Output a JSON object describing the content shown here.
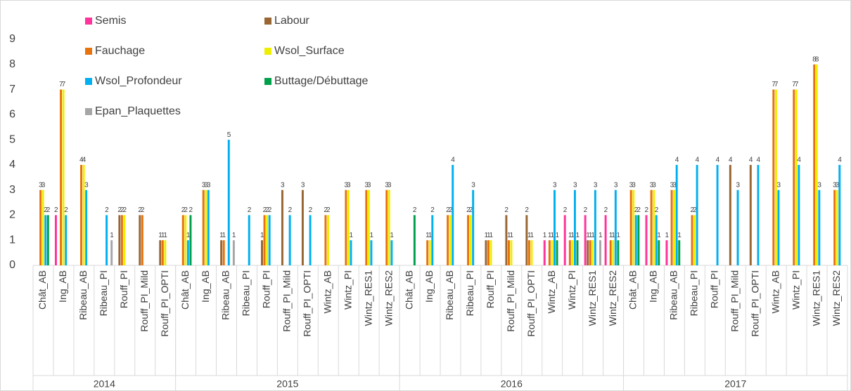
{
  "chart_data": {
    "type": "bar",
    "categories": [
      "Chât_AB",
      "Ing_AB",
      "Ribeau_AB",
      "Ribeau_PI",
      "Rouff_PI",
      "Rouff_PI_Mild",
      "Rouff_PI_OPTI",
      "Chât_AB",
      "Ing_AB",
      "Ribeau_AB",
      "Ribeau_PI",
      "Rouff_PI",
      "Rouff_PI_Mild",
      "Rouff_PI_OPTI",
      "Wintz_AB",
      "Wintz_PI",
      "Wintz_RES1",
      "Wintz_RES2",
      "Chât_AB",
      "Ing_AB",
      "Ribeau_AB",
      "Ribeau_PI",
      "Rouff_PI",
      "Rouff_PI_Mild",
      "Rouff_PI_OPTI",
      "Wintz_AB",
      "Wintz_PI",
      "Wintz_RES1",
      "Wintz_RES2",
      "Chât_AB",
      "Ing_AB",
      "Ribeau_AB",
      "Ribeau_PI",
      "Rouff_PI",
      "Rouff_PI_Mild",
      "Rouff_PI_OPTI",
      "Wintz_AB",
      "Wintz_PI",
      "Wintz_RES1",
      "Wintz_RES2"
    ],
    "category_groups": [
      "2014",
      "2014",
      "2014",
      "2014",
      "2014",
      "2014",
      "2014",
      "2015",
      "2015",
      "2015",
      "2015",
      "2015",
      "2015",
      "2015",
      "2015",
      "2015",
      "2015",
      "2015",
      "2016",
      "2016",
      "2016",
      "2016",
      "2016",
      "2016",
      "2016",
      "2016",
      "2016",
      "2016",
      "2016",
      "2017",
      "2017",
      "2017",
      "2017",
      "2017",
      "2017",
      "2017",
      "2017",
      "2017",
      "2017",
      "2017"
    ],
    "series": [
      {
        "name": "Semis",
        "color": "#ff3399",
        "values": [
          null,
          2,
          null,
          null,
          null,
          null,
          null,
          null,
          null,
          null,
          null,
          null,
          null,
          null,
          null,
          null,
          null,
          null,
          null,
          null,
          null,
          null,
          null,
          null,
          null,
          1,
          2,
          2,
          2,
          null,
          2,
          1,
          null,
          null,
          null,
          null,
          null,
          null,
          null,
          null
        ]
      },
      {
        "name": "Labour",
        "color": "#996633",
        "values": [
          null,
          null,
          null,
          null,
          2,
          2,
          1,
          null,
          null,
          1,
          null,
          1,
          3,
          3,
          null,
          null,
          null,
          null,
          null,
          null,
          null,
          null,
          1,
          2,
          2,
          null,
          null,
          1,
          null,
          null,
          null,
          null,
          null,
          null,
          4,
          4,
          null,
          null,
          null,
          null
        ]
      },
      {
        "name": "Fauchage",
        "color": "#e8720c",
        "values": [
          3,
          7,
          4,
          null,
          2,
          2,
          1,
          2,
          3,
          1,
          null,
          2,
          null,
          null,
          2,
          3,
          3,
          3,
          null,
          1,
          2,
          2,
          1,
          1,
          1,
          1,
          1,
          1,
          1,
          3,
          3,
          3,
          2,
          null,
          null,
          null,
          7,
          7,
          8,
          3
        ]
      },
      {
        "name": "Wsol_Surface",
        "color": "#eeee00",
        "values": [
          3,
          7,
          4,
          null,
          2,
          null,
          1,
          2,
          3,
          null,
          null,
          2,
          null,
          null,
          2,
          3,
          3,
          3,
          null,
          1,
          2,
          2,
          1,
          1,
          1,
          1,
          1,
          1,
          1,
          3,
          3,
          3,
          2,
          null,
          null,
          null,
          7,
          7,
          8,
          3
        ]
      },
      {
        "name": "Wsol_Profondeur",
        "color": "#00b0f0",
        "values": [
          2,
          2,
          3,
          2,
          null,
          null,
          null,
          1,
          3,
          5,
          2,
          2,
          2,
          2,
          null,
          1,
          1,
          1,
          null,
          2,
          4,
          3,
          null,
          null,
          null,
          3,
          3,
          3,
          3,
          2,
          2,
          4,
          4,
          4,
          3,
          4,
          3,
          4,
          3,
          4
        ]
      },
      {
        "name": "Buttage/Débuttage",
        "color": "#00a04a",
        "values": [
          2,
          null,
          null,
          null,
          null,
          null,
          null,
          2,
          null,
          null,
          null,
          null,
          null,
          null,
          null,
          null,
          null,
          null,
          2,
          null,
          null,
          null,
          null,
          null,
          null,
          1,
          1,
          null,
          1,
          2,
          1,
          1,
          null,
          null,
          null,
          null,
          null,
          null,
          null,
          null
        ]
      },
      {
        "name": "Epan_Plaquettes",
        "color": "#a6a6a6",
        "values": [
          null,
          null,
          null,
          1,
          null,
          null,
          null,
          null,
          null,
          1,
          null,
          null,
          null,
          null,
          null,
          null,
          null,
          null,
          null,
          null,
          null,
          null,
          null,
          null,
          null,
          null,
          null,
          1,
          null,
          null,
          null,
          null,
          null,
          null,
          null,
          null,
          null,
          null,
          null,
          null
        ]
      }
    ],
    "ylim": [
      0,
      9
    ],
    "yticks": [
      0,
      1,
      2,
      3,
      4,
      5,
      6,
      7,
      8,
      9
    ],
    "grid": false,
    "legend": "top-left"
  }
}
